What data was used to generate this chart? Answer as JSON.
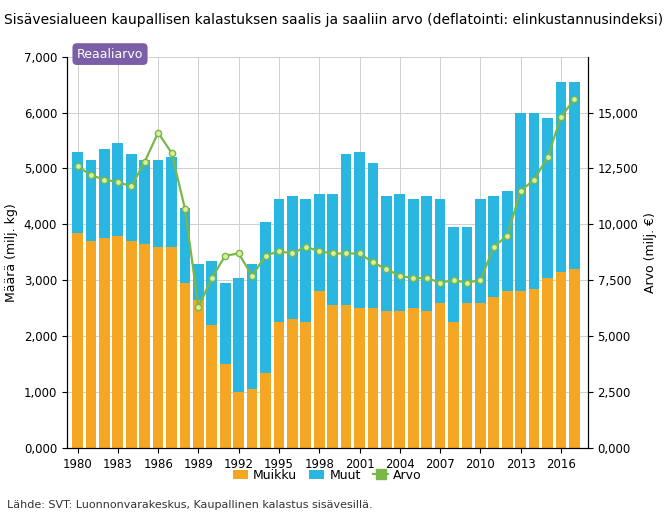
{
  "title": "Sisävesialueen kaupallisen kalastuksen saalis ja saaliin arvo (deflatointi: elinkustannusindeksi)",
  "ylabel_left": "Määrä (milj. kg)",
  "ylabel_right": "Arvo (milj. €)",
  "source": "Lähde: SVT: Luonnonvarakeskus, Kaupallinen kalastus sisävesillä.",
  "ylim_left": [
    0,
    7000
  ],
  "ylim_right": [
    0,
    17500
  ],
  "yticks_left": [
    0,
    1000,
    2000,
    3000,
    4000,
    5000,
    6000,
    7000
  ],
  "yticks_right": [
    0,
    2500,
    5000,
    7500,
    10000,
    12500,
    15000
  ],
  "years": [
    1980,
    1981,
    1982,
    1983,
    1984,
    1985,
    1986,
    1987,
    1988,
    1989,
    1990,
    1991,
    1992,
    1993,
    1994,
    1995,
    1996,
    1997,
    1998,
    1999,
    2000,
    2001,
    2002,
    2003,
    2004,
    2005,
    2006,
    2007,
    2008,
    2009,
    2010,
    2011,
    2012,
    2013,
    2014,
    2015,
    2016,
    2017
  ],
  "muikku": [
    3850,
    3700,
    3750,
    3800,
    3700,
    3650,
    3600,
    3600,
    2950,
    2650,
    2200,
    1500,
    1000,
    1050,
    1350,
    2250,
    2300,
    2250,
    2800,
    2550,
    2550,
    2500,
    2500,
    2450,
    2450,
    2500,
    2450,
    2600,
    2250,
    2600,
    2600,
    2700,
    2800,
    2800,
    2850,
    3050,
    3150,
    3200
  ],
  "muut": [
    1450,
    1450,
    1600,
    1650,
    1550,
    1500,
    1550,
    1600,
    1350,
    650,
    1150,
    1450,
    2050,
    2250,
    2700,
    2200,
    2200,
    2200,
    1750,
    2000,
    2700,
    2800,
    2600,
    2050,
    2100,
    1950,
    2050,
    1850,
    1700,
    1350,
    1850,
    1800,
    1800,
    3200,
    3150,
    2850,
    3400,
    3350
  ],
  "arvo": [
    12600,
    12200,
    12000,
    11900,
    11700,
    12800,
    14100,
    13200,
    10700,
    6300,
    7600,
    8600,
    8700,
    7700,
    8600,
    8800,
    8700,
    9000,
    8800,
    8700,
    8700,
    8700,
    8300,
    8000,
    7700,
    7600,
    7600,
    7400,
    7500,
    7400,
    7500,
    9000,
    9500,
    11500,
    12000,
    13000,
    14800,
    15600
  ],
  "bar_color_muikku": "#f5a623",
  "bar_color_muut": "#29b6e0",
  "line_color_arvo": "#7ab648",
  "marker_face_color": "#d4f0a0",
  "background_color": "#ffffff",
  "grid_color": "#d0d0d0",
  "label_muikku": "Muikku",
  "label_muut": "Muut",
  "label_arvo": "Arvo",
  "reaaliarvo_label": "Reaaliarvo",
  "reaaliarvo_bg": "#7b5ea7",
  "reaaliarvo_text_color": "#ffffff",
  "xtick_labels": [
    "1980",
    "1983",
    "1986",
    "1989",
    "1992",
    "1995",
    "1998",
    "2001",
    "2004",
    "2007",
    "2010",
    "2013",
    "2016"
  ],
  "xtick_positions": [
    1980,
    1983,
    1986,
    1989,
    1992,
    1995,
    1998,
    2001,
    2004,
    2007,
    2010,
    2013,
    2016
  ],
  "title_fontsize": 10,
  "axis_fontsize": 9,
  "tick_fontsize": 8.5,
  "legend_fontsize": 9
}
